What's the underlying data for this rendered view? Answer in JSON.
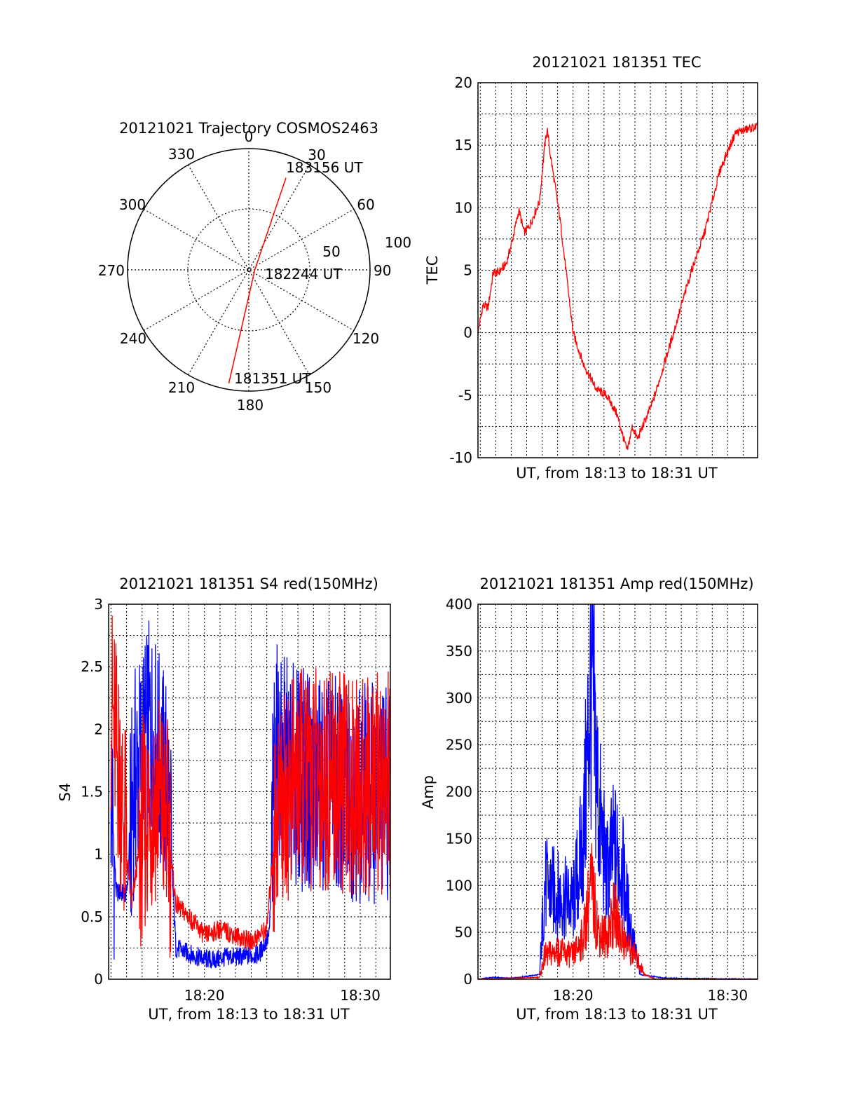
{
  "chart_data": [
    {
      "type": "polar",
      "title": "20121021 Trajectory COSMOS2463",
      "azimuth_labels": [
        "0",
        "30",
        "60",
        "90",
        "120",
        "150",
        "180",
        "210",
        "240",
        "270",
        "300",
        "330"
      ],
      "radial_labels": [
        "50",
        "100"
      ],
      "track": {
        "color": "#ff0000",
        "points": [
          {
            "az": 190,
            "zenith": 95
          },
          {
            "az": 90,
            "zenith": 5
          },
          {
            "az": 22,
            "zenith": 82
          }
        ]
      },
      "annotations": [
        "183156 UT",
        "182244 UT",
        "181351 UT"
      ]
    },
    {
      "type": "line",
      "title": "20121021 181351 TEC",
      "xlabel": "UT, from 18:13 to 18:31 UT",
      "ylabel": "TEC",
      "xlim": [
        "18:13:51",
        "18:31:56"
      ],
      "ylim": [
        -10,
        20
      ],
      "yticks": [
        "-10",
        "-5",
        "0",
        "5",
        "10",
        "15",
        "20"
      ],
      "grid": true,
      "series": [
        {
          "color": "#ff0000",
          "points": [
            [
              "18:13:51",
              0.0
            ],
            [
              "18:14:10",
              2.2
            ],
            [
              "18:14:30",
              2.0
            ],
            [
              "18:14:50",
              4.8
            ],
            [
              "18:15:10",
              4.8
            ],
            [
              "18:15:40",
              5.5
            ],
            [
              "18:16:00",
              7.0
            ],
            [
              "18:16:30",
              9.8
            ],
            [
              "18:16:50",
              8.0
            ],
            [
              "18:17:10",
              8.5
            ],
            [
              "18:17:30",
              9.5
            ],
            [
              "18:17:50",
              10.5
            ],
            [
              "18:18:10",
              15.0
            ],
            [
              "18:18:20",
              16.3
            ],
            [
              "18:18:30",
              14.5
            ],
            [
              "18:19:10",
              9.0
            ],
            [
              "18:20:00",
              0.0
            ],
            [
              "18:20:40",
              -2.5
            ],
            [
              "18:21:30",
              -4.5
            ],
            [
              "18:22:10",
              -5.0
            ],
            [
              "18:22:50",
              -6.5
            ],
            [
              "18:23:30",
              -9.5
            ],
            [
              "18:23:50",
              -7.5
            ],
            [
              "18:24:10",
              -8.5
            ],
            [
              "18:24:40",
              -7.0
            ],
            [
              "18:25:10",
              -5.5
            ],
            [
              "18:26:30",
              0.0
            ],
            [
              "18:27:40",
              5.0
            ],
            [
              "18:28:30",
              8.0
            ],
            [
              "18:29:30",
              13.0
            ],
            [
              "18:30:30",
              16.0
            ],
            [
              "18:31:56",
              16.5
            ]
          ]
        }
      ]
    },
    {
      "type": "line",
      "title": "20121021 181351 S4 red(150MHz)",
      "xlabel": "UT, from 18:13 to 18:31 UT",
      "ylabel": "S4",
      "xlim": [
        "18:13:51",
        "18:31:56"
      ],
      "ylim": [
        0,
        3
      ],
      "yticks": [
        "0",
        "0.5",
        "1",
        "1.5",
        "2",
        "2.5",
        "3"
      ],
      "xticks": [
        "18:20",
        "18:30"
      ],
      "grid": true,
      "series": [
        {
          "color": "#0000ff",
          "points": [
            [
              "18:14:00",
              1.5
            ],
            [
              "18:14:20",
              0.7
            ],
            [
              "18:15:00",
              0.68
            ],
            [
              "18:15:30",
              1.6
            ],
            [
              "18:16:30",
              2.0
            ],
            [
              "18:17:40",
              1.5
            ],
            [
              "18:18:10",
              0.25
            ],
            [
              "18:19:30",
              0.18
            ],
            [
              "18:20:30",
              0.15
            ],
            [
              "18:21:30",
              0.18
            ],
            [
              "18:22:30",
              0.18
            ],
            [
              "18:23:30",
              0.2
            ],
            [
              "18:24:10",
              0.35
            ],
            [
              "18:24:30",
              1.8
            ],
            [
              "18:26:00",
              1.6
            ],
            [
              "18:28:00",
              1.55
            ],
            [
              "18:30:00",
              1.5
            ],
            [
              "18:31:56",
              1.5
            ]
          ]
        },
        {
          "color": "#ff0000",
          "points": [
            [
              "18:14:00",
              2.2
            ],
            [
              "18:14:40",
              1.5
            ],
            [
              "18:15:20",
              0.6
            ],
            [
              "18:16:00",
              1.2
            ],
            [
              "18:17:00",
              1.5
            ],
            [
              "18:17:40",
              1.2
            ],
            [
              "18:18:10",
              0.6
            ],
            [
              "18:19:00",
              0.5
            ],
            [
              "18:20:00",
              0.35
            ],
            [
              "18:21:00",
              0.4
            ],
            [
              "18:22:00",
              0.35
            ],
            [
              "18:23:00",
              0.3
            ],
            [
              "18:24:00",
              0.4
            ],
            [
              "18:24:40",
              1.4
            ],
            [
              "18:26:00",
              1.6
            ],
            [
              "18:28:00",
              1.6
            ],
            [
              "18:30:00",
              1.5
            ],
            [
              "18:31:56",
              1.6
            ]
          ]
        }
      ]
    },
    {
      "type": "line",
      "title": "20121021 181351 Amp red(150MHz)",
      "xlabel": "UT, from 18:13 to 18:31 UT",
      "ylabel": "Amp",
      "xlim": [
        "18:13:51",
        "18:31:56"
      ],
      "ylim": [
        0,
        400
      ],
      "yticks": [
        "0",
        "50",
        "100",
        "150",
        "200",
        "250",
        "300",
        "350",
        "400"
      ],
      "xticks": [
        "18:20",
        "18:30"
      ],
      "grid": true,
      "series": [
        {
          "color": "#0000ff",
          "points": [
            [
              "18:13:51",
              0
            ],
            [
              "18:14:50",
              2
            ],
            [
              "18:16:00",
              1
            ],
            [
              "18:17:50",
              5
            ],
            [
              "18:18:10",
              100
            ],
            [
              "18:19:00",
              90
            ],
            [
              "18:20:00",
              80
            ],
            [
              "18:20:40",
              150
            ],
            [
              "18:21:10",
              320
            ],
            [
              "18:21:40",
              180
            ],
            [
              "18:22:10",
              110
            ],
            [
              "18:22:40",
              140
            ],
            [
              "18:23:10",
              120
            ],
            [
              "18:23:40",
              60
            ],
            [
              "18:24:20",
              5
            ],
            [
              "18:26:00",
              1
            ],
            [
              "18:31:56",
              0
            ]
          ]
        },
        {
          "color": "#ff0000",
          "points": [
            [
              "18:13:51",
              0
            ],
            [
              "18:17:50",
              2
            ],
            [
              "18:18:10",
              25
            ],
            [
              "18:19:00",
              30
            ],
            [
              "18:20:00",
              25
            ],
            [
              "18:20:40",
              45
            ],
            [
              "18:21:10",
              100
            ],
            [
              "18:21:40",
              50
            ],
            [
              "18:22:10",
              45
            ],
            [
              "18:22:40",
              70
            ],
            [
              "18:23:20",
              40
            ],
            [
              "18:24:00",
              25
            ],
            [
              "18:24:40",
              5
            ],
            [
              "18:25:20",
              0
            ],
            [
              "18:31:56",
              0
            ]
          ]
        }
      ]
    }
  ]
}
